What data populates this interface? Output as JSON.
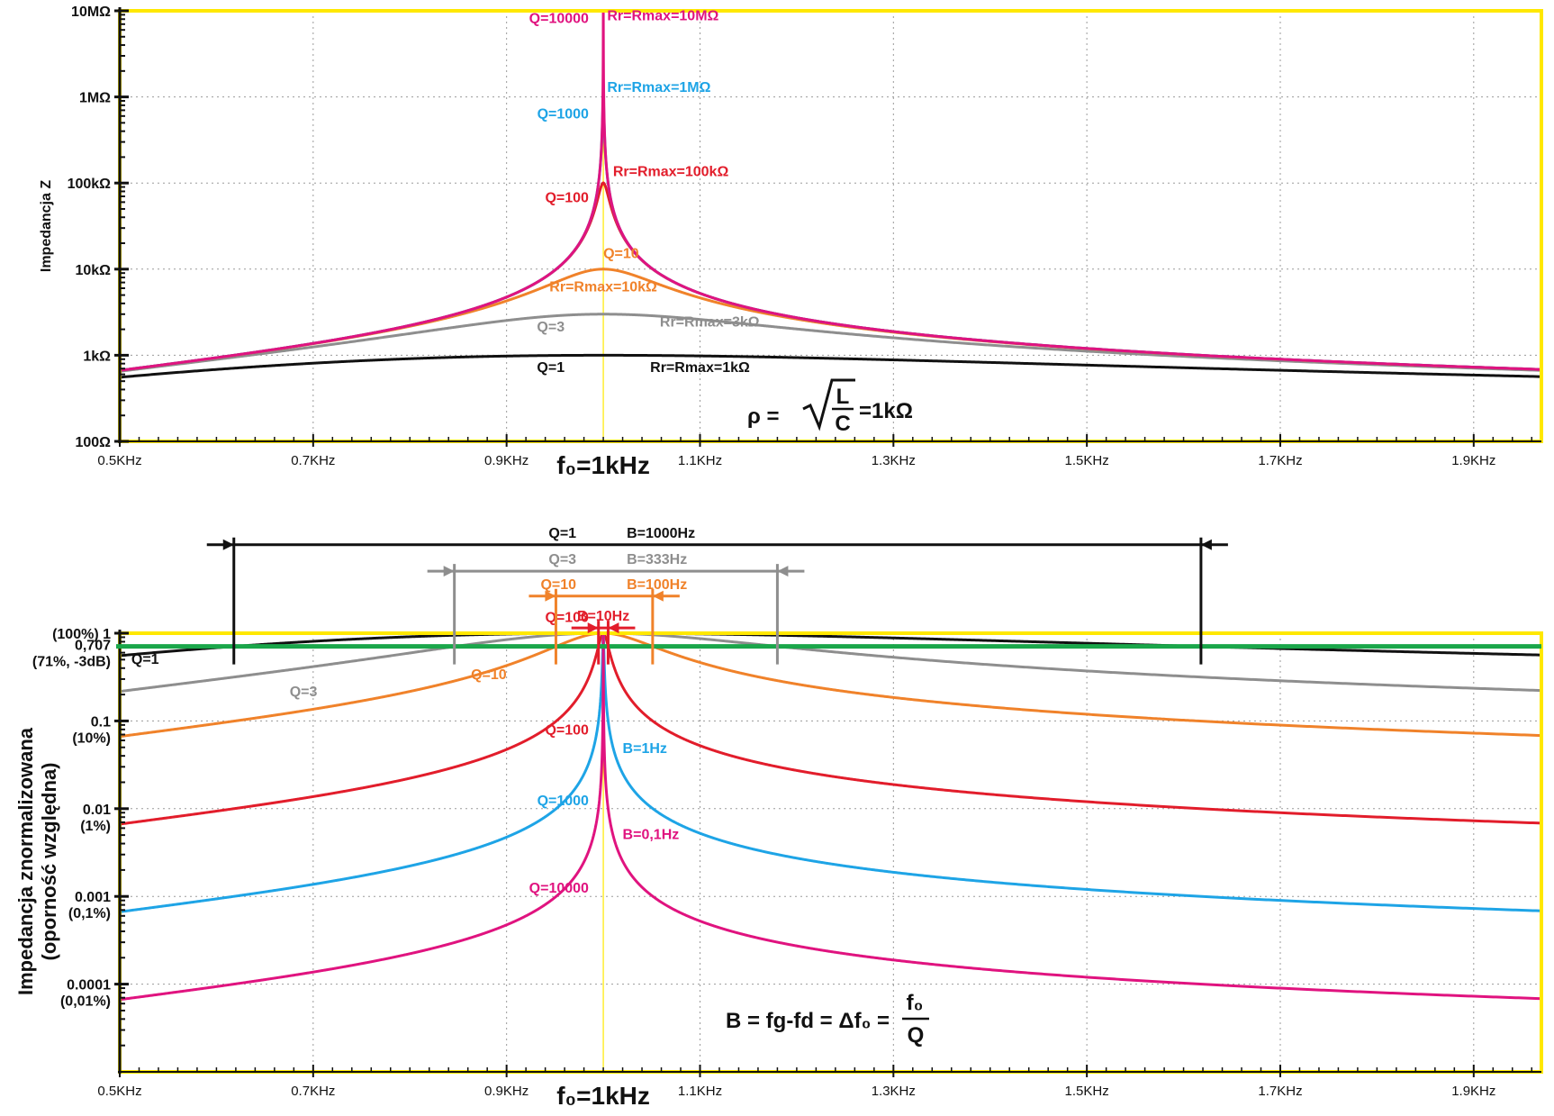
{
  "chart_data": [
    {
      "type": "line",
      "y_scale": "log",
      "x_unit": "kHz",
      "xlim": [
        0.5,
        1.97
      ],
      "ylim": [
        100,
        10000000
      ],
      "ylabel": "Impedancja Z",
      "x_ticks": [
        0.5,
        0.7,
        0.9,
        1.1,
        1.3,
        1.5,
        1.7,
        1.9
      ],
      "x_tick_labels": [
        "0.5KHz",
        "0.7KHz",
        "0.9KHz",
        "1.1KHz",
        "1.3KHz",
        "1.5KHz",
        "1.7KHz",
        "1.9KHz"
      ],
      "y_ticks": [
        100,
        1000,
        10000,
        100000,
        1000000,
        10000000
      ],
      "y_tick_labels": [
        "100Ω",
        "1kΩ",
        "10kΩ",
        "100kΩ",
        "1MΩ",
        "10MΩ"
      ],
      "center_label": "f₀=1kHz",
      "formula": {
        "lhs": "ρ =",
        "num": "L",
        "den": "C",
        "rhs": "=1kΩ"
      },
      "grid": true,
      "frame_color": "#ffe800",
      "series": [
        {
          "name": "Q=1",
          "Q": 1,
          "Rr": 1000,
          "color": "#111111",
          "width": 3,
          "labels": [
            {
              "text": "Q=1",
              "x": 0.96,
              "y": 640,
              "anchor": "end"
            },
            {
              "text": "Rr=Rmax=1kΩ",
              "x": 1.1,
              "y": 640,
              "anchor": "middle"
            }
          ]
        },
        {
          "name": "Q=3",
          "Q": 3,
          "Rr": 3000,
          "color": "#8e8e8e",
          "width": 3,
          "labels": [
            {
              "text": "Q=3",
              "x": 0.96,
              "y": 1900,
              "anchor": "end"
            },
            {
              "text": "Rr=Rmax=3kΩ",
              "x": 1.11,
              "y": 2150,
              "anchor": "middle"
            }
          ]
        },
        {
          "name": "Q=10",
          "Q": 10,
          "Rr": 10000,
          "color": "#f0822a",
          "width": 3,
          "labels": [
            {
              "text": "Q=10",
              "x": 1.0,
              "y": 13500,
              "anchor": "start"
            },
            {
              "text": "Rr=Rmax=10kΩ",
              "x": 1.0,
              "y": 5500,
              "anchor": "middle"
            }
          ]
        },
        {
          "name": "Q=100",
          "Q": 100,
          "Rr": 100000,
          "color": "#e21d2b",
          "width": 3,
          "labels": [
            {
              "text": "Q=100",
              "x": 0.985,
              "y": 60000,
              "anchor": "end"
            },
            {
              "text": "Rr=Rmax=100kΩ",
              "x": 1.01,
              "y": 120000,
              "anchor": "start"
            }
          ]
        },
        {
          "name": "Q=1000",
          "Q": 1000,
          "Rr": 1000000,
          "color": "#1ea4e6",
          "width": 3,
          "labels": [
            {
              "text": "Q=1000",
              "x": 0.985,
              "y": 560000,
              "anchor": "end"
            },
            {
              "text": "Rr=Rmax=1MΩ",
              "x": 1.004,
              "y": 1150000,
              "anchor": "start"
            }
          ]
        },
        {
          "name": "Q=10000",
          "Q": 10000,
          "Rr": 10000000,
          "color": "#e0137f",
          "width": 3,
          "labels": [
            {
              "text": "Q=10000",
              "x": 0.985,
              "y": 7200000,
              "anchor": "end"
            },
            {
              "text": "Rr=Rmax=10MΩ",
              "x": 1.004,
              "y": 7800000,
              "anchor": "start"
            }
          ]
        }
      ]
    },
    {
      "type": "line",
      "y_scale": "log",
      "x_unit": "kHz",
      "xlim": [
        0.5,
        1.97
      ],
      "ylim": [
        1e-05,
        1
      ],
      "ylabel": [
        "Impedancja  znormalizowana",
        "(oporność względna)"
      ],
      "x_ticks": [
        0.5,
        0.7,
        0.9,
        1.1,
        1.3,
        1.5,
        1.7,
        1.9
      ],
      "x_tick_labels": [
        "0.5KHz",
        "0.7KHz",
        "0.9KHz",
        "1.1KHz",
        "1.3KHz",
        "1.5KHz",
        "1.7KHz",
        "1.9KHz"
      ],
      "y_ticks": [
        1,
        0.1,
        0.01,
        0.001,
        0.0001
      ],
      "y_tick_labels": [
        [
          "(100%) 1"
        ],
        [
          "0.1",
          "(10%)"
        ],
        [
          "0.01",
          "(1%)"
        ],
        [
          "0.001",
          "(0,1%)"
        ],
        [
          "0.0001",
          "(0,01%)"
        ]
      ],
      "center_label": "f₀=1kHz",
      "formula": {
        "lhs": "B = fg-fd = Δf₀ =",
        "num": "f₀",
        "den": "Q"
      },
      "grid": true,
      "frame_color": "#ffe800",
      "minus3db": {
        "value": 0.707,
        "labels": [
          "0,707",
          "(71%, -3dB)"
        ],
        "color": "#1aa64a"
      },
      "series": [
        {
          "name": "Q=1",
          "Q": 1,
          "color": "#111111",
          "width": 3,
          "labels": [
            {
              "text": "Q=1",
              "x": 0.512,
              "y": 0.45,
              "anchor": "start"
            }
          ]
        },
        {
          "name": "Q=3",
          "Q": 3,
          "color": "#8e8e8e",
          "width": 3,
          "labels": [
            {
              "text": "Q=3",
              "x": 0.69,
              "y": 0.19,
              "anchor": "middle"
            }
          ]
        },
        {
          "name": "Q=10",
          "Q": 10,
          "color": "#f0822a",
          "width": 3,
          "labels": [
            {
              "text": "Q=10",
              "x": 0.9,
              "y": 0.3,
              "anchor": "end"
            }
          ]
        },
        {
          "name": "Q=100",
          "Q": 100,
          "color": "#e21d2b",
          "width": 3,
          "labels": [
            {
              "text": "Q=100",
              "x": 0.985,
              "y": 0.07,
              "anchor": "end"
            },
            {
              "text": "Q=100",
              "x": 0.985,
              "y": 1.35,
              "anchor": "end"
            }
          ]
        },
        {
          "name": "Q=1000",
          "Q": 1000,
          "color": "#1ea4e6",
          "width": 3,
          "labels": [
            {
              "text": "Q=1000",
              "x": 0.985,
              "y": 0.011,
              "anchor": "end"
            },
            {
              "text": "B=1Hz",
              "x": 1.02,
              "y": 0.043,
              "anchor": "start"
            }
          ]
        },
        {
          "name": "Q=10000",
          "Q": 10000,
          "color": "#e0137f",
          "width": 3,
          "labels": [
            {
              "text": "Q=10000",
              "x": 0.985,
              "y": 0.0011,
              "anchor": "end"
            },
            {
              "text": "B=0,1Hz",
              "x": 1.02,
              "y": 0.0045,
              "anchor": "start"
            }
          ]
        }
      ],
      "bandwidths": [
        {
          "Q": "Q=1",
          "B": "B=1000Hz",
          "f1": 0.618,
          "f2": 1.618,
          "color": "#111111",
          "y": 10.2
        },
        {
          "Q": "Q=3",
          "B": "B=333Hz",
          "f1": 0.846,
          "f2": 1.18,
          "color": "#8e8e8e",
          "y": 5.1
        },
        {
          "Q": "Q=10",
          "B": "B=100Hz",
          "f1": 0.951,
          "f2": 1.051,
          "color": "#f0822a",
          "y": 2.65
        },
        {
          "Q": "",
          "B": "B=10Hz",
          "f1": 0.995,
          "f2": 1.005,
          "color": "#e21d2b",
          "y": 1.15
        }
      ]
    }
  ]
}
